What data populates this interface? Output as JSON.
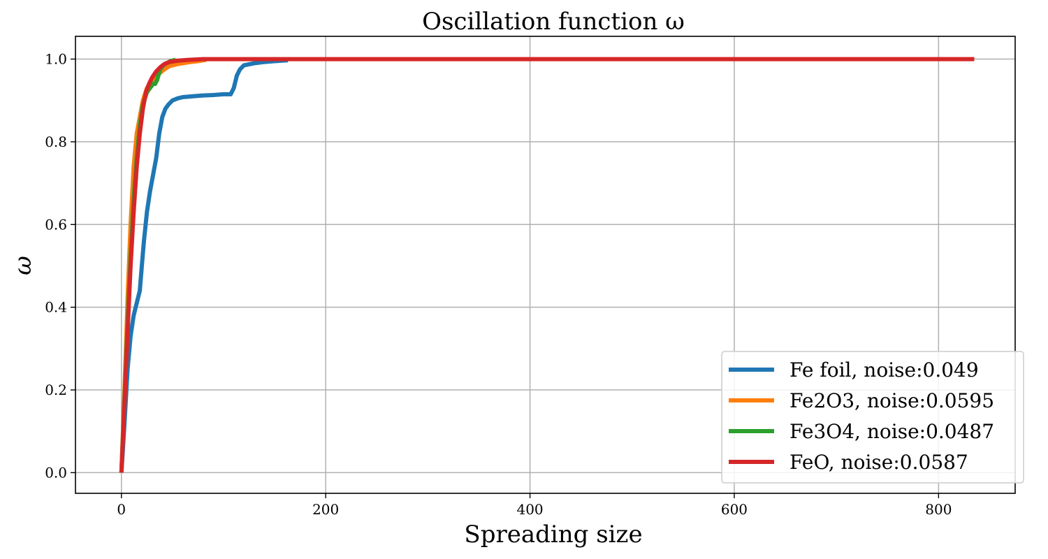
{
  "chart_data": {
    "type": "line",
    "title": "Oscillation function ω",
    "xlabel": "Spreading size",
    "ylabel": "ω",
    "xlim": [
      -45,
      875
    ],
    "ylim": [
      -0.05,
      1.055
    ],
    "xticks": [
      0,
      200,
      400,
      600,
      800
    ],
    "xtick_labels": [
      "0",
      "200",
      "400",
      "600",
      "800"
    ],
    "yticks": [
      0.0,
      0.2,
      0.4,
      0.6,
      0.8,
      1.0
    ],
    "ytick_labels": [
      "0.0",
      "0.2",
      "0.4",
      "0.6",
      "0.8",
      "1.0"
    ],
    "grid": true,
    "legend_position": "lower-right",
    "series": [
      {
        "name": "Fe foil, noise:0.049",
        "color": "#1f77b4",
        "x": [
          0,
          3,
          6,
          9,
          12,
          15,
          18,
          20,
          22,
          25,
          28,
          31,
          34,
          37,
          40,
          43,
          46,
          50,
          55,
          60,
          70,
          80,
          90,
          100,
          107,
          110,
          113,
          116,
          120,
          130,
          140,
          150,
          163
        ],
        "y": [
          0.0,
          0.12,
          0.25,
          0.33,
          0.38,
          0.41,
          0.44,
          0.5,
          0.56,
          0.63,
          0.68,
          0.72,
          0.76,
          0.82,
          0.86,
          0.88,
          0.89,
          0.9,
          0.905,
          0.908,
          0.91,
          0.912,
          0.913,
          0.915,
          0.915,
          0.93,
          0.96,
          0.975,
          0.985,
          0.99,
          0.993,
          0.995,
          0.997
        ]
      },
      {
        "name": "Fe2O3, noise:0.0595",
        "color": "#ff7f0e",
        "x": [
          0,
          3,
          6,
          9,
          12,
          15,
          18,
          21,
          25,
          29,
          33,
          37,
          42,
          47,
          55,
          65,
          75,
          83
        ],
        "y": [
          0.0,
          0.2,
          0.42,
          0.6,
          0.74,
          0.82,
          0.86,
          0.9,
          0.93,
          0.945,
          0.955,
          0.965,
          0.975,
          0.983,
          0.988,
          0.992,
          0.995,
          0.998
        ]
      },
      {
        "name": "Fe3O4, noise:0.0487",
        "color": "#2ca02c",
        "x": [
          0,
          3,
          6,
          9,
          12,
          15,
          18,
          21,
          25,
          28,
          31,
          33,
          35,
          38,
          41,
          44,
          48,
          53
        ],
        "y": [
          0.0,
          0.18,
          0.36,
          0.52,
          0.66,
          0.76,
          0.84,
          0.89,
          0.92,
          0.93,
          0.94,
          0.94,
          0.95,
          0.975,
          0.985,
          0.99,
          0.995,
          0.998
        ]
      },
      {
        "name": "FeO, noise:0.0587",
        "color": "#d62728",
        "x": [
          0,
          3,
          6,
          9,
          12,
          15,
          18,
          21,
          24,
          27,
          30,
          34,
          38,
          42,
          47,
          55,
          65,
          80,
          100,
          200,
          400,
          600,
          835
        ],
        "y": [
          0.0,
          0.17,
          0.34,
          0.5,
          0.63,
          0.74,
          0.82,
          0.88,
          0.92,
          0.94,
          0.955,
          0.97,
          0.98,
          0.988,
          0.993,
          0.996,
          0.998,
          1.0,
          1.0,
          1.0,
          1.0,
          1.0,
          1.0
        ]
      }
    ]
  }
}
